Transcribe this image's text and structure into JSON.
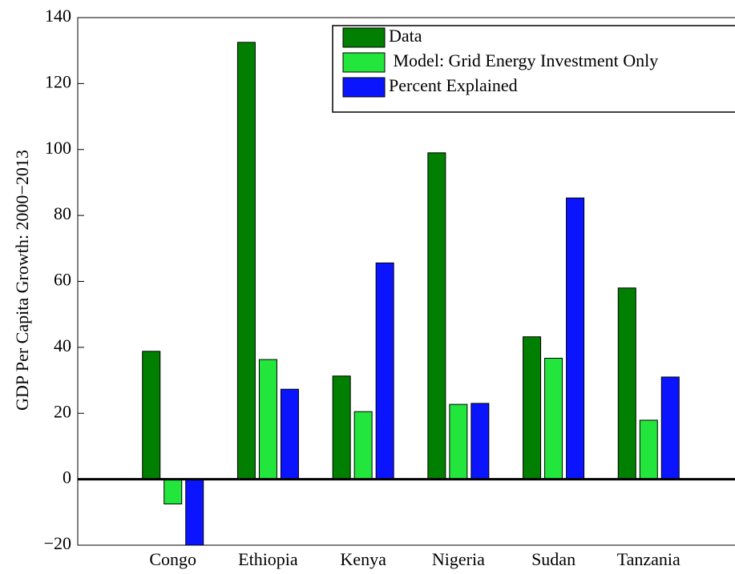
{
  "chart_data": {
    "type": "bar",
    "y_label": "GDP Per Capita Growth: 2000−2013",
    "categories": [
      "Congo",
      "Ethiopia",
      "Kenya",
      "Nigeria",
      "Sudan",
      "Tanzania"
    ],
    "series": [
      {
        "name": "Data",
        "color": "#007f00",
        "values": [
          38.8,
          132.5,
          31.3,
          99,
          43.2,
          58
        ]
      },
      {
        "name": " Model: Grid Energy Investment Only",
        "color": "#22e63c",
        "values": [
          -7.5,
          36.3,
          20.5,
          22.7,
          36.7,
          17.9
        ]
      },
      {
        "name": "Percent Explained",
        "color": "#0a14ff",
        "values": [
          -20,
          27.3,
          65.6,
          23,
          85.3,
          31
        ]
      }
    ],
    "ylim": [
      -20,
      140
    ],
    "yticks": [
      {
        "value": -20,
        "label": "−20"
      },
      0,
      20,
      40,
      60,
      80,
      100,
      120,
      140
    ]
  }
}
